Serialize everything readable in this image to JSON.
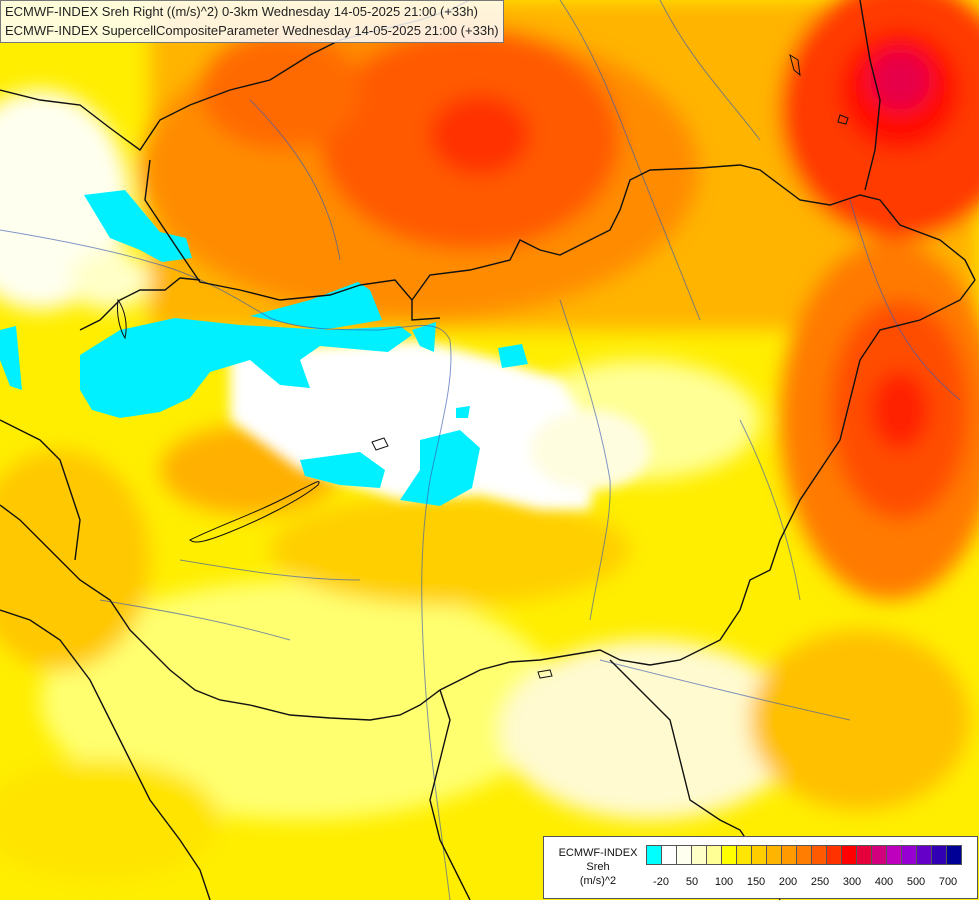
{
  "header": {
    "line1": "ECMWF-INDEX Sreh Right ((m/s)^2) 0-3km Wednesday 14-05-2025 21:00 (+33h)",
    "line2": "ECMWF-INDEX SupercellCompositeParameter Wednesday 14-05-2025 21:00 (+33h)"
  },
  "legend": {
    "title_1": "ECMWF-INDEX",
    "title_2": "Sreh",
    "title_3": "(m/s)^2",
    "colors": [
      "#00ffff",
      "#ffffff",
      "#fffff0",
      "#ffffc8",
      "#ffff96",
      "#ffff00",
      "#ffe600",
      "#ffcd00",
      "#ffb400",
      "#ff9b00",
      "#ff7d00",
      "#ff5a00",
      "#ff3200",
      "#ff0000",
      "#e6003c",
      "#d2007d",
      "#be00be",
      "#9600d2",
      "#6400c8",
      "#3200b4",
      "#000096"
    ],
    "ticks": [
      "-20",
      "50",
      "100",
      "150",
      "200",
      "250",
      "300",
      "400",
      "500",
      "700"
    ]
  },
  "field_colors": {
    "white": "#ffffff",
    "cream": "#fffde0",
    "light_yellow": "#ffff96",
    "yellow": "#ffee00",
    "orange_yellow": "#ffcd00",
    "orange": "#ffa500",
    "dark_orange": "#ff7a00",
    "red_orange": "#ff4e00",
    "red": "#ff1500",
    "magenta_red": "#e6004a",
    "cyan": "#00f0ff"
  }
}
